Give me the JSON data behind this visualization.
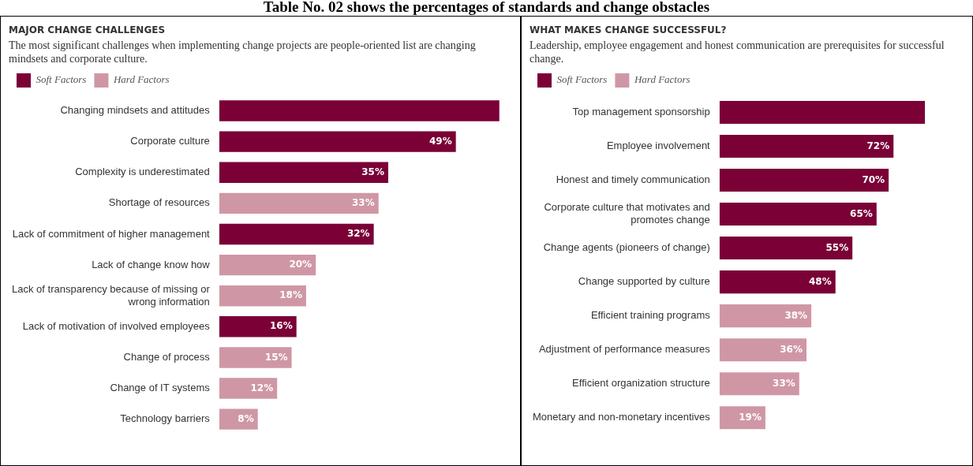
{
  "chart_data": [
    {
      "type": "bar",
      "orientation": "horizontal",
      "title": "MAJOR CHANGE CHALLENGES",
      "subtitle": "The most significant challenges when implementing change projects are people-oriented list are changing mindsets and corporate culture.",
      "annotations": [
        "Table No. 02 shows the percentages of standards and change obstacles"
      ],
      "legend": "top left",
      "grid": false,
      "tick_labels": "y",
      "categories": [
        "Changing mindsets and attitudes",
        "Corporate culture",
        "Complexity is underestimated",
        "Shortage of resources",
        "Lack of commitment of higher management",
        "Lack of change know how",
        "Lack of transparency because of missing or wrong information",
        "Lack of motivation of involved employees",
        "Change of process",
        "Change of IT systems",
        "Technology barriers"
      ],
      "series": [
        {
          "name": "Soft Factors",
          "color": "#7a0036",
          "values": [
            58,
            49,
            35,
            null,
            32,
            null,
            null,
            16,
            null,
            null,
            null
          ],
          "value_labels": [
            null,
            "49%",
            "35%",
            null,
            "32%",
            null,
            null,
            "16%",
            null,
            null,
            null
          ]
        },
        {
          "name": "Hard Factors",
          "color": "#cf97a5",
          "values": [
            null,
            null,
            null,
            33,
            null,
            20,
            18,
            null,
            15,
            12,
            8
          ],
          "value_labels": [
            null,
            null,
            null,
            "33%",
            null,
            "20%",
            "18%",
            null,
            "15%",
            "12%",
            "8%"
          ]
        }
      ]
    },
    {
      "type": "bar",
      "orientation": "horizontal",
      "title": "WHAT MAKES CHANGE SUCCESSFUL?",
      "subtitle": "Leadership, employee engagement and honest communication are prerequisites for successful change.",
      "legend": "top left",
      "grid": false,
      "tick_labels": "y",
      "categories": [
        "Top management sponsorship",
        "Employee involvement",
        "Honest and timely communication",
        "Corporate culture that motivates and promotes change",
        "Change agents (pioneers of change)",
        "Change supported by culture",
        "Efficient training programs",
        "Adjustment of performance measures",
        "Efficient organization structure",
        "Monetary and non-monetary incentives"
      ],
      "series": [
        {
          "name": "Soft Factors",
          "color": "#7a0036",
          "values": [
            85,
            72,
            70,
            65,
            55,
            48,
            null,
            null,
            null,
            null
          ],
          "value_labels": [
            null,
            "72%",
            "70%",
            "65%",
            "55%",
            "48%",
            null,
            null,
            null,
            null
          ]
        },
        {
          "name": "Hard Factors",
          "color": "#cf97a5",
          "values": [
            null,
            null,
            null,
            null,
            null,
            null,
            38,
            36,
            33,
            19
          ],
          "value_labels": [
            null,
            null,
            null,
            null,
            null,
            null,
            "38%",
            "36%",
            "33%",
            "19%"
          ]
        }
      ]
    }
  ]
}
